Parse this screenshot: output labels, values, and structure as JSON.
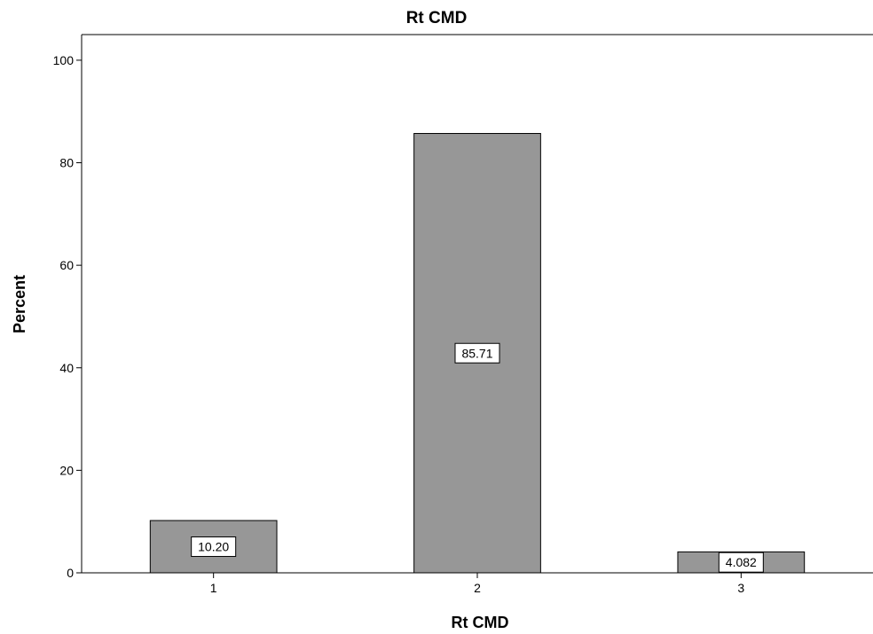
{
  "chart_data": {
    "type": "bar",
    "title": "Rt CMD",
    "xlabel": "Rt CMD",
    "ylabel": "Percent",
    "categories": [
      "1",
      "2",
      "3"
    ],
    "values": [
      10.2,
      85.71,
      4.082
    ],
    "data_labels": [
      "10.20",
      "85.71",
      "4.082"
    ],
    "ylim": [
      0,
      105
    ],
    "yticks": [
      0,
      20,
      40,
      60,
      80,
      100
    ],
    "grid": false,
    "legend": "none",
    "bar_color": "#979797",
    "bar_stroke": "#000000"
  }
}
